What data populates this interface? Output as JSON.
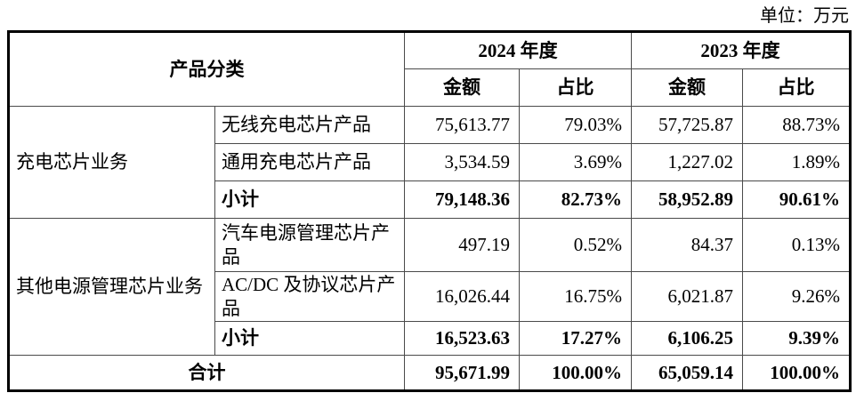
{
  "unit_label": "单位：万元",
  "table": {
    "header": {
      "product_category": "产品分类",
      "col_2024": "2024 年度",
      "col_2023": "2023 年度",
      "amount_2024": "金额",
      "ratio_2024": "占比",
      "amount_2023": "金额",
      "ratio_2023": "占比"
    },
    "groups": [
      {
        "name": "充电芯片业务",
        "rows": [
          {
            "label": "无线充电芯片产品",
            "values": [
              "75,613.77",
              "79.03%",
              "57,725.87",
              "88.73%"
            ]
          },
          {
            "label": "通用充电芯片产品",
            "values": [
              "3,534.59",
              "3.69%",
              "1,227.02",
              "1.89%"
            ]
          },
          {
            "label": "小计",
            "values": [
              "79,148.36",
              "82.73%",
              "58,952.89",
              "90.61%"
            ]
          }
        ]
      },
      {
        "name": "其他电源管理芯片业务",
        "rows": [
          {
            "label": "汽车电源管理芯片产品",
            "values": [
              "497.19",
              "0.52%",
              "84.37",
              "0.13%"
            ]
          },
          {
            "label": "AC/DC 及协议芯片产品",
            "values": [
              "16,026.44",
              "16.75%",
              "6,021.87",
              "9.26%"
            ]
          },
          {
            "label": "小计",
            "values": [
              "16,523.63",
              "17.27%",
              "6,106.25",
              "9.39%"
            ]
          }
        ]
      }
    ],
    "total": {
      "label": "合计",
      "values": [
        "95,671.99",
        "100.00%",
        "65,059.14",
        "100.00%"
      ]
    }
  },
  "colors": {
    "outer_border": "#000000",
    "grid_line": "#4a4a4a",
    "text": "#000000",
    "background": "#ffffff"
  }
}
